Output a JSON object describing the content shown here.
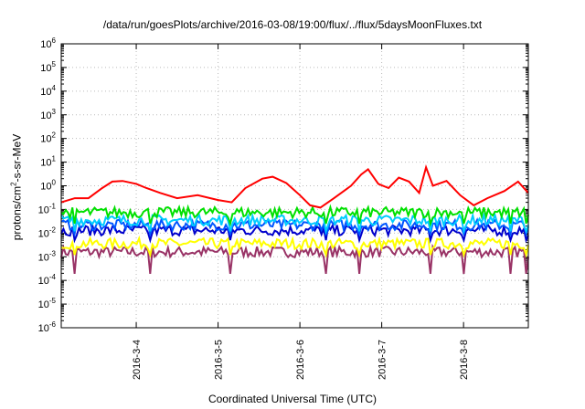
{
  "chart_data": {
    "type": "line",
    "title": "/data/run/goesPlots/archive/2016-03-08/19:00/flux/../flux/5daysMoonFluxes.txt",
    "xlabel": "Coordinated Universal Time (UTC)",
    "ylabel_parts": [
      "protons/cm",
      "2",
      "-s-sr-MeV"
    ],
    "y_scale": "log",
    "ylim": [
      1e-06,
      1000000.0
    ],
    "y_tick_labels": [
      {
        "base": "10",
        "exp": "-6"
      },
      {
        "base": "10",
        "exp": "-5"
      },
      {
        "base": "10",
        "exp": "-4"
      },
      {
        "base": "10",
        "exp": "-3"
      },
      {
        "base": "10",
        "exp": "-2"
      },
      {
        "base": "10",
        "exp": "-1"
      },
      {
        "base": "10",
        "exp": "0"
      },
      {
        "base": "10",
        "exp": "1"
      },
      {
        "base": "10",
        "exp": "2"
      },
      {
        "base": "10",
        "exp": "3"
      },
      {
        "base": "10",
        "exp": "4"
      },
      {
        "base": "10",
        "exp": "5"
      },
      {
        "base": "10",
        "exp": "6"
      }
    ],
    "xlim": [
      "2016-03-03T02:00",
      "2016-03-08T19:00"
    ],
    "x_ticks": [
      "2016-3-4",
      "2016-3-5",
      "2016-3-6",
      "2016-3-7",
      "2016-3-8"
    ],
    "grid": true,
    "series": [
      {
        "color": "#ff0000",
        "points": [
          [
            "2016-03-03T02:00",
            0.2
          ],
          [
            "2016-03-03T06:00",
            0.3
          ],
          [
            "2016-03-03T10:00",
            0.3
          ],
          [
            "2016-03-03T14:00",
            0.8
          ],
          [
            "2016-03-03T17:00",
            1.5
          ],
          [
            "2016-03-03T20:00",
            1.6
          ],
          [
            "2016-03-04T00:00",
            1.2
          ],
          [
            "2016-03-04T03:00",
            0.8
          ],
          [
            "2016-03-04T07:00",
            0.5
          ],
          [
            "2016-03-04T12:00",
            0.3
          ],
          [
            "2016-03-04T18:00",
            0.4
          ],
          [
            "2016-03-05T00:00",
            0.25
          ],
          [
            "2016-03-05T04:00",
            0.2
          ],
          [
            "2016-03-05T08:00",
            0.8
          ],
          [
            "2016-03-05T13:00",
            2.0
          ],
          [
            "2016-03-05T16:00",
            2.4
          ],
          [
            "2016-03-05T20:00",
            1.3
          ],
          [
            "2016-03-06T00:00",
            0.4
          ],
          [
            "2016-03-06T03:00",
            0.15
          ],
          [
            "2016-03-06T06:00",
            0.12
          ],
          [
            "2016-03-06T10:00",
            0.3
          ],
          [
            "2016-03-06T15:00",
            1.0
          ],
          [
            "2016-03-06T18:00",
            3.0
          ],
          [
            "2016-03-06T20:00",
            5.0
          ],
          [
            "2016-03-06T23:00",
            1.2
          ],
          [
            "2016-03-07T02:00",
            0.8
          ],
          [
            "2016-03-07T05:00",
            2.2
          ],
          [
            "2016-03-07T08:00",
            1.5
          ],
          [
            "2016-03-07T11:00",
            0.5
          ],
          [
            "2016-03-07T13:00",
            6.0
          ],
          [
            "2016-03-07T15:00",
            1.0
          ],
          [
            "2016-03-07T19:00",
            1.6
          ],
          [
            "2016-03-07T23:00",
            0.4
          ],
          [
            "2016-03-08T03:00",
            0.15
          ],
          [
            "2016-03-08T07:00",
            0.3
          ],
          [
            "2016-03-08T12:00",
            0.6
          ],
          [
            "2016-03-08T16:00",
            1.5
          ],
          [
            "2016-03-08T19:00",
            0.5
          ]
        ]
      },
      {
        "color": "#00e000",
        "level": 0.075,
        "dip": 0.025
      },
      {
        "color": "#00ccff",
        "level": 0.035,
        "dip": 0.012
      },
      {
        "color": "#0055ff",
        "level": 0.022,
        "dip": 0.009
      },
      {
        "color": "#0000cc",
        "level": 0.013,
        "dip": 0.005
      },
      {
        "color": "#ffff00",
        "level": 0.0036,
        "dip": 0.0012
      },
      {
        "color": "#993366",
        "level": 0.0016,
        "dip": 0.00019
      }
    ]
  }
}
